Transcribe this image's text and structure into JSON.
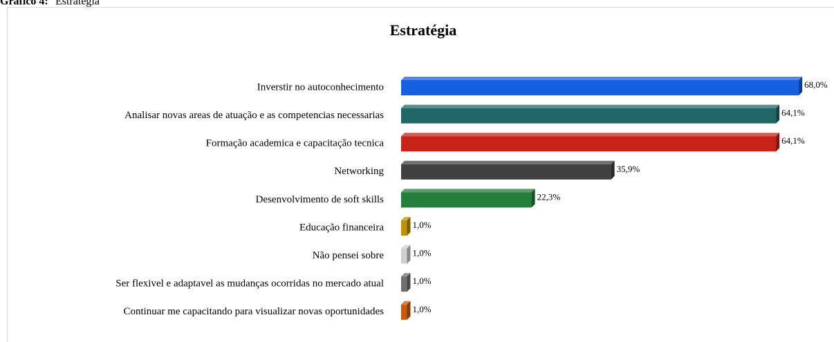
{
  "caption": {
    "label": "Gráfico 4:",
    "text": "Estratégia"
  },
  "chart_data": {
    "type": "bar",
    "orientation": "horizontal",
    "title": "Estratégia",
    "categories": [
      "Inverstir no autoconhecimento",
      "Analisar novas areas de atuação e as competencias necessarias",
      "Formação academica e capacitação tecnica",
      "Networking",
      "Desenvolvimento de soft skills",
      "Educação financeira",
      "Não pensei sobre",
      "Ser flexivel e adaptavel as mudanças ocorridas no mercado atual",
      "Continuar me capacitando para visualizar novas oportunidades"
    ],
    "values": [
      68.0,
      64.1,
      64.1,
      35.9,
      22.3,
      1.0,
      1.0,
      1.0,
      1.0
    ],
    "value_labels": [
      "68,0%",
      "64,1%",
      "64,1%",
      "35,9%",
      "22,3%",
      "1,0%",
      "1,0%",
      "1,0%",
      "1,0%"
    ],
    "colors": [
      "#1560e0",
      "#216767",
      "#c8231a",
      "#404040",
      "#237f3a",
      "#c0920a",
      "#d0d0d0",
      "#707070",
      "#c85a10"
    ],
    "xlim": [
      0,
      70
    ]
  }
}
